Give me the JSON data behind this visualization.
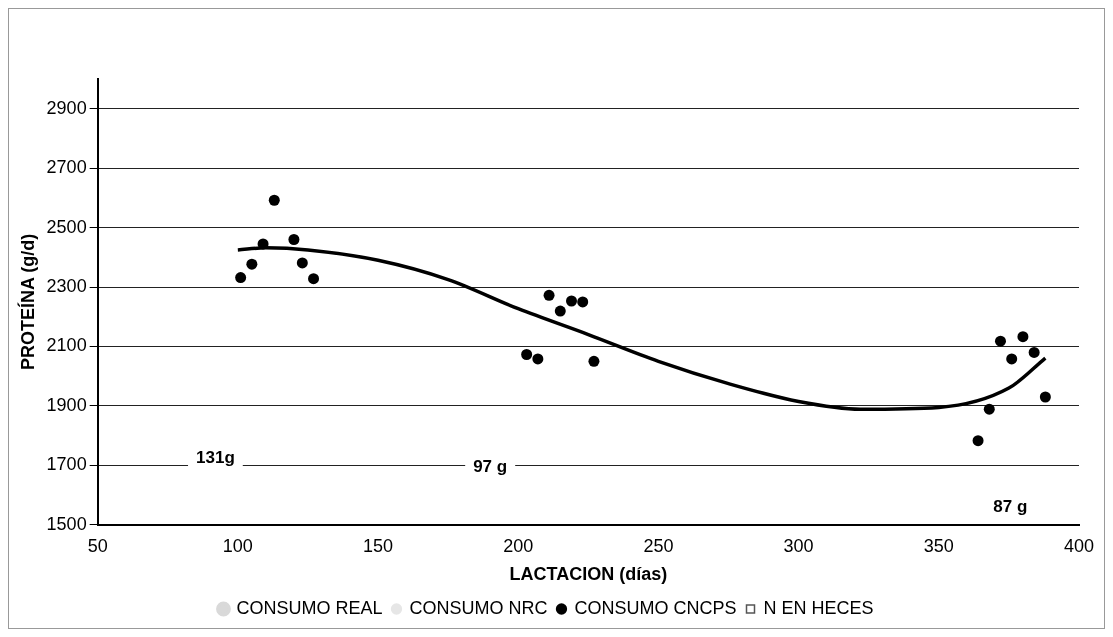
{
  "chart_data": {
    "type": "scatter",
    "xlabel": "LACTACION (días)",
    "ylabel": "PROTEÍNA (g/d)",
    "xlim": [
      50,
      400
    ],
    "xticks": [
      50,
      100,
      150,
      200,
      250,
      300,
      350,
      400
    ],
    "ylim": [
      1500,
      3000
    ],
    "yticks": [
      1500,
      1700,
      1900,
      2100,
      2300,
      2500,
      2700,
      2900
    ],
    "grid": "y",
    "legend": "bottom",
    "marker": "circle",
    "series": [
      {
        "name": "CONSUMO REAL",
        "type": "line",
        "color": "#d9d9d9"
      },
      {
        "name": "CONSUMO NRC",
        "color": "#e6e6e6"
      },
      {
        "name": "CONSUMO CNCPS",
        "color": "#000000",
        "x": [
          101,
          105,
          109,
          113,
          120,
          123,
          127,
          203,
          207,
          211,
          215,
          219,
          223,
          227,
          364,
          368,
          372,
          376,
          380,
          384,
          388
        ],
        "values": [
          2332,
          2377,
          2445,
          2592,
          2460,
          2381,
          2328,
          2073,
          2058,
          2272,
          2219,
          2253,
          2250,
          2050,
          1783,
          1889,
          2118,
          2058,
          2133,
          2080,
          1930
        ]
      },
      {
        "name": "N EN HECES",
        "marker": "square",
        "color": "#555555"
      },
      {
        "type": "line",
        "color": "#000000",
        "marker": "none",
        "x": [
          100,
          110,
          125,
          150,
          175,
          200,
          225,
          250,
          275,
          300,
          322,
          350,
          375,
          388
        ],
        "values": [
          2425,
          2432,
          2425,
          2390,
          2325,
          2227,
          2140,
          2050,
          1975,
          1915,
          1889,
          1895,
          1960,
          2061
        ]
      }
    ],
    "annotations": [
      "131g",
      "97 g",
      "87 g"
    ]
  }
}
